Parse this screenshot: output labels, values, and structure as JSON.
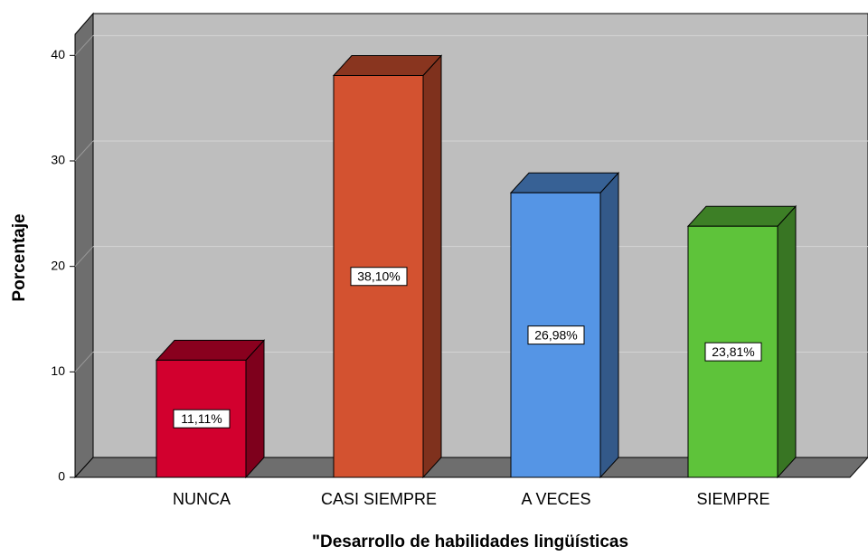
{
  "chart_data": {
    "type": "bar3d",
    "x_label": "\"Desarrollo de habilidades lingüísticas",
    "y_label": "Porcentaje",
    "categories": [
      "NUNCA",
      "CASI SIEMPRE",
      "A VECES",
      "SIEMPRE"
    ],
    "values": [
      11.11,
      38.1,
      26.98,
      23.81
    ],
    "value_labels": [
      "11,11%",
      "38,10%",
      "26,98%",
      "23,81%"
    ],
    "colors": [
      "#d2002e",
      "#d35230",
      "#5595e5",
      "#5ec33a"
    ],
    "ylim": [
      0,
      42
    ],
    "yticks": [
      0,
      10,
      20,
      30,
      40
    ],
    "grid": true
  }
}
